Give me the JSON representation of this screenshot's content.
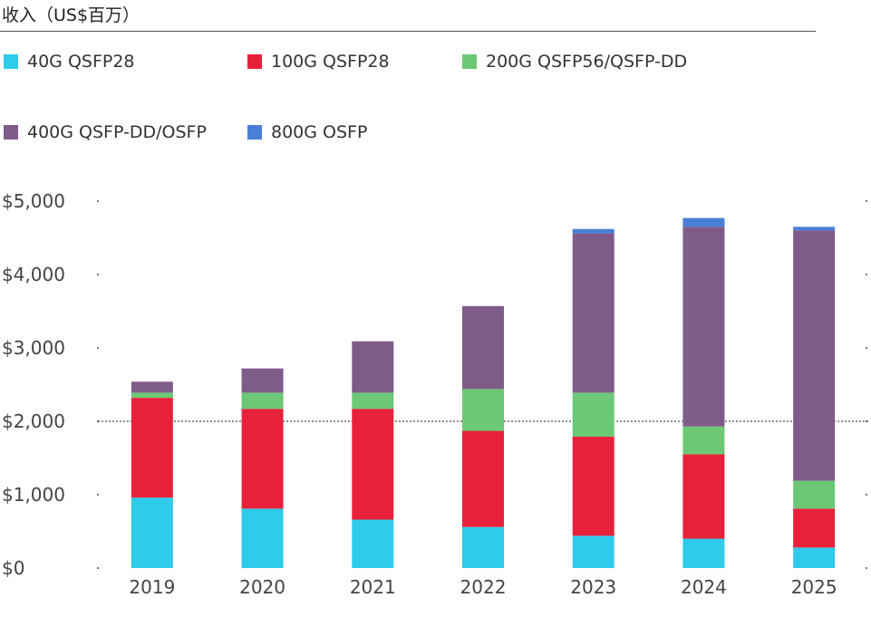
{
  "chart_data": {
    "type": "bar",
    "stacked": true,
    "title": "收入（US$百万）",
    "categories": [
      "2019",
      "2020",
      "2021",
      "2022",
      "2023",
      "2024",
      "2025"
    ],
    "series": [
      {
        "name": "40G QSFP28",
        "color": "#2ecbea",
        "values": [
          960,
          810,
          660,
          560,
          440,
          400,
          280
        ]
      },
      {
        "name": "100G QSFP28",
        "color": "#e8213b",
        "values": [
          1360,
          1360,
          1510,
          1310,
          1350,
          1150,
          530
        ]
      },
      {
        "name": "200G QSFP56/QSFP-DD",
        "color": "#6cc875",
        "values": [
          70,
          220,
          220,
          570,
          600,
          380,
          380
        ]
      },
      {
        "name": "400G QSFP-DD/OSFP",
        "color": "#7f5b8a",
        "values": [
          150,
          330,
          700,
          1130,
          2170,
          2720,
          3410
        ]
      },
      {
        "name": "800G OSFP",
        "color": "#4a7fd6",
        "values": [
          0,
          0,
          0,
          0,
          60,
          120,
          50
        ]
      }
    ],
    "ylim": [
      0,
      5000
    ],
    "yticks": [
      0,
      1000,
      2000,
      3000,
      4000,
      5000
    ],
    "ytick_labels": [
      "$0",
      "$1,000",
      "$2,000",
      "$3,000",
      "$4,000",
      "$5,000"
    ],
    "reference_line": 2000,
    "xlabel": "",
    "ylabel": "",
    "grid": false,
    "legend_position": "top"
  }
}
